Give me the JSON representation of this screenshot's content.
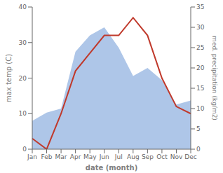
{
  "chart_data": {
    "type": "line",
    "categories": [
      "Jan",
      "Feb",
      "Mar",
      "Apr",
      "May",
      "Jun",
      "Jul",
      "Aug",
      "Sep",
      "Oct",
      "Nov",
      "Dec"
    ],
    "series": [
      {
        "type": "area",
        "color": "#aec6e8",
        "axis": "y2",
        "values": [
          7,
          9,
          10,
          24,
          28,
          30,
          25,
          18,
          20,
          17,
          11,
          12
        ]
      },
      {
        "type": "line",
        "color": "#c0392b",
        "values": [
          3,
          0,
          10,
          22,
          27,
          32,
          32,
          37,
          32,
          20,
          12,
          10
        ]
      }
    ],
    "xlabel": "date (month)",
    "ylabel": "max temp (C)",
    "y2label": "med. precipitation (kg/m2)",
    "ylim": [
      0,
      40
    ],
    "yticks": [
      0,
      10,
      20,
      30,
      40
    ],
    "y2lim": [
      0,
      35
    ],
    "y2ticks": [
      0,
      5,
      10,
      15,
      20,
      25,
      30,
      35
    ],
    "grid": false
  }
}
